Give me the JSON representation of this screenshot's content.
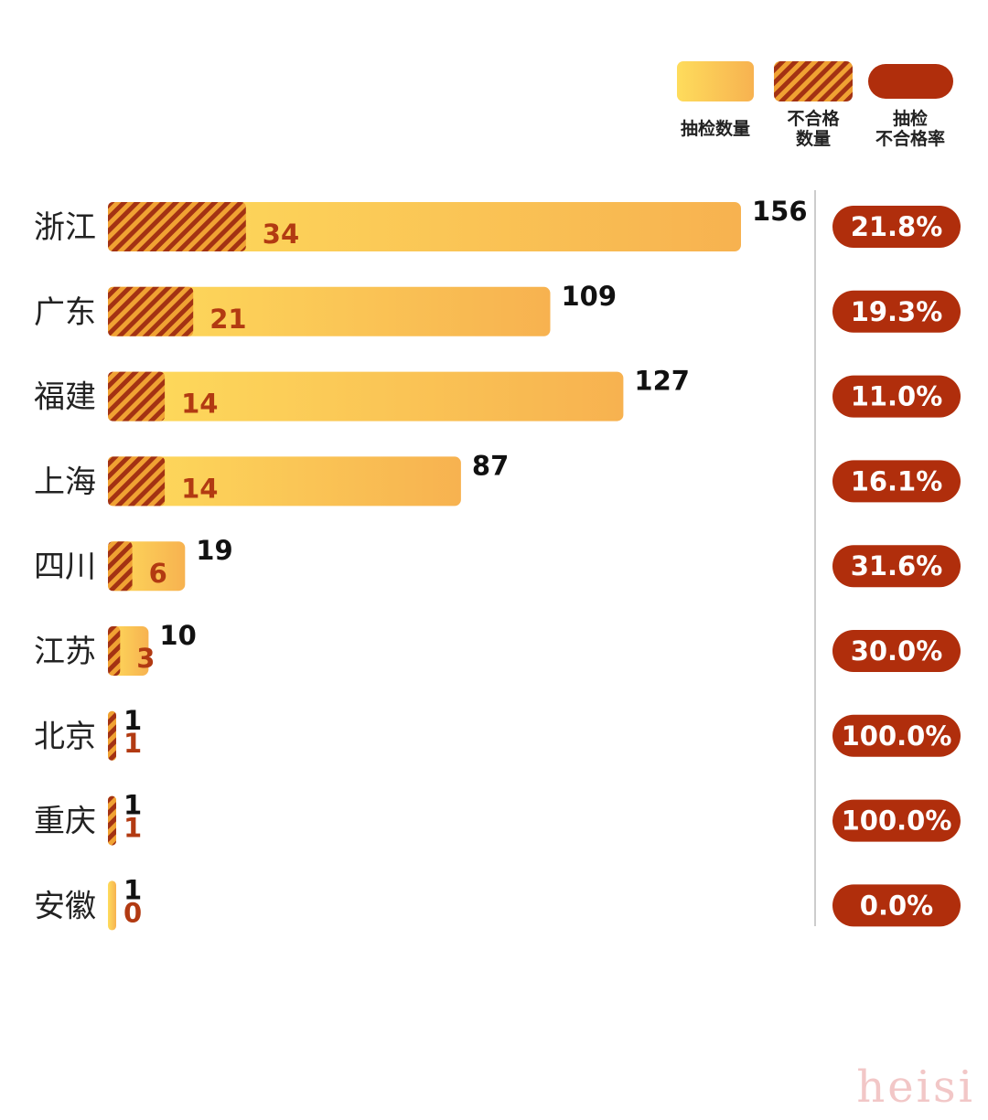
{
  "legend": {
    "sample_label": "抽检数量",
    "fail_label_line1": "不合格",
    "fail_label_line2": "数量",
    "rate_label_line1": "抽检",
    "rate_label_line2": "不合格率"
  },
  "colors": {
    "bar_light": "#fedc5c",
    "bar_dark": "#f7b250",
    "hatch_a": "#a33213",
    "hatch_b": "#f0a233",
    "fail_text": "#b23a12",
    "pill": "#b02e0c",
    "label_text": "#222222",
    "divider": "#cccccc"
  },
  "chart_data": {
    "type": "bar",
    "orientation": "horizontal",
    "categories": [
      "浙江",
      "广东",
      "福建",
      "上海",
      "四川",
      "江苏",
      "北京",
      "重庆",
      "安徽"
    ],
    "series": [
      {
        "name": "抽检数量",
        "values": [
          156,
          109,
          127,
          87,
          19,
          10,
          1,
          1,
          1
        ]
      },
      {
        "name": "不合格数量",
        "values": [
          34,
          21,
          14,
          14,
          6,
          3,
          1,
          1,
          0
        ]
      }
    ],
    "rates": [
      "21.8%",
      "19.3%",
      "11.0%",
      "16.1%",
      "31.6%",
      "30.0%",
      "100.0%",
      "100.0%",
      "0.0%"
    ],
    "xlim": [
      0,
      156
    ],
    "grid": false,
    "legend_position": "top-right"
  },
  "watermark": "heisi"
}
